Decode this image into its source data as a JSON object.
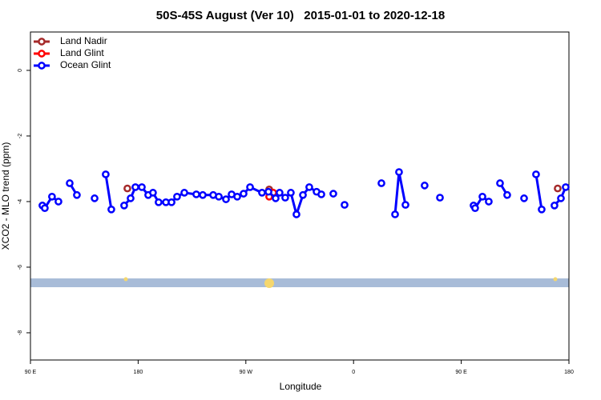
{
  "chart_data": {
    "type": "line",
    "title": "50S-45S August (Ver 10)   2015-01-01 to 2020-12-18",
    "xlabel": "Longitude",
    "ylabel": "XCO2 - MLO trend (ppm)",
    "xlim": [
      90,
      540
    ],
    "ylim": [
      -8.83,
      1.17
    ],
    "xticks": [
      {
        "value": 90,
        "label": "90 E"
      },
      {
        "value": 180,
        "label": "180"
      },
      {
        "value": 270,
        "label": "90 W"
      },
      {
        "value": 360,
        "label": "0"
      },
      {
        "value": 450,
        "label": "90 E"
      },
      {
        "value": 540,
        "label": "180"
      }
    ],
    "yticks": [
      0,
      -2,
      -4,
      -6,
      -8
    ],
    "legend": "top-left",
    "series": [
      {
        "name": "Land Nadir",
        "color": "#a52a2a",
        "x": [
          171,
          null,
          289.5,
          null,
          530.6
        ],
        "values": [
          -3.6,
          null,
          -3.63,
          null,
          -3.6
        ]
      },
      {
        "name": "Land Glint",
        "color": "#ff0000",
        "x": [
          289.5,
          292.9
        ],
        "values": [
          -3.85,
          -3.73
        ]
      },
      {
        "name": "Ocean Glint",
        "color": "#0000ff",
        "x": [
          100,
          102,
          108,
          113.4,
          null,
          122.8,
          128.8,
          null,
          143.6,
          null,
          152.9,
          157.6,
          null,
          168.3,
          173.7,
          177.7,
          183.1,
          188.4,
          192.4,
          197.1,
          203.2,
          207.9,
          212.5,
          218.6,
          228.6,
          234,
          242.7,
          247.4,
          253.4,
          258.1,
          262.8,
          268.1,
          273.5,
          283.5,
          288.9,
          294.9,
          298.2,
          302.9,
          307.6,
          312.3,
          317.7,
          323,
          329.1,
          333.1,
          null,
          343.1,
          null,
          352.5,
          null,
          383.3,
          null,
          394.7,
          398,
          403.4,
          null,
          419.4,
          null,
          432.2,
          null,
          460.3,
          461.6,
          467.7,
          473,
          null,
          482.4,
          488.4,
          null,
          502.5,
          null,
          512.5,
          517.2,
          null,
          527.9,
          533.3,
          537.3
        ],
        "values": [
          -4.12,
          -4.2,
          -3.85,
          -4.0,
          null,
          -3.44,
          -3.8,
          null,
          -3.9,
          null,
          -3.17,
          -4.24,
          null,
          -4.12,
          -3.9,
          -3.56,
          -3.56,
          -3.8,
          -3.73,
          -4.02,
          -4.02,
          -4.02,
          -3.85,
          -3.73,
          -3.78,
          -3.8,
          -3.8,
          -3.85,
          -3.93,
          -3.78,
          -3.85,
          -3.76,
          -3.56,
          -3.73,
          -3.7,
          -3.9,
          -3.73,
          -3.88,
          -3.73,
          -4.39,
          -3.8,
          -3.56,
          -3.7,
          -3.78,
          null,
          -3.76,
          null,
          -4.1,
          null,
          -3.44,
          null,
          -4.39,
          -3.1,
          -4.1,
          null,
          -3.51,
          null,
          -3.88,
          null,
          -4.12,
          -4.2,
          -3.85,
          -4.0,
          null,
          -3.44,
          -3.8,
          null,
          -3.9,
          null,
          -3.17,
          -4.24,
          null,
          -4.12,
          -3.9,
          -3.56
        ]
      }
    ]
  }
}
